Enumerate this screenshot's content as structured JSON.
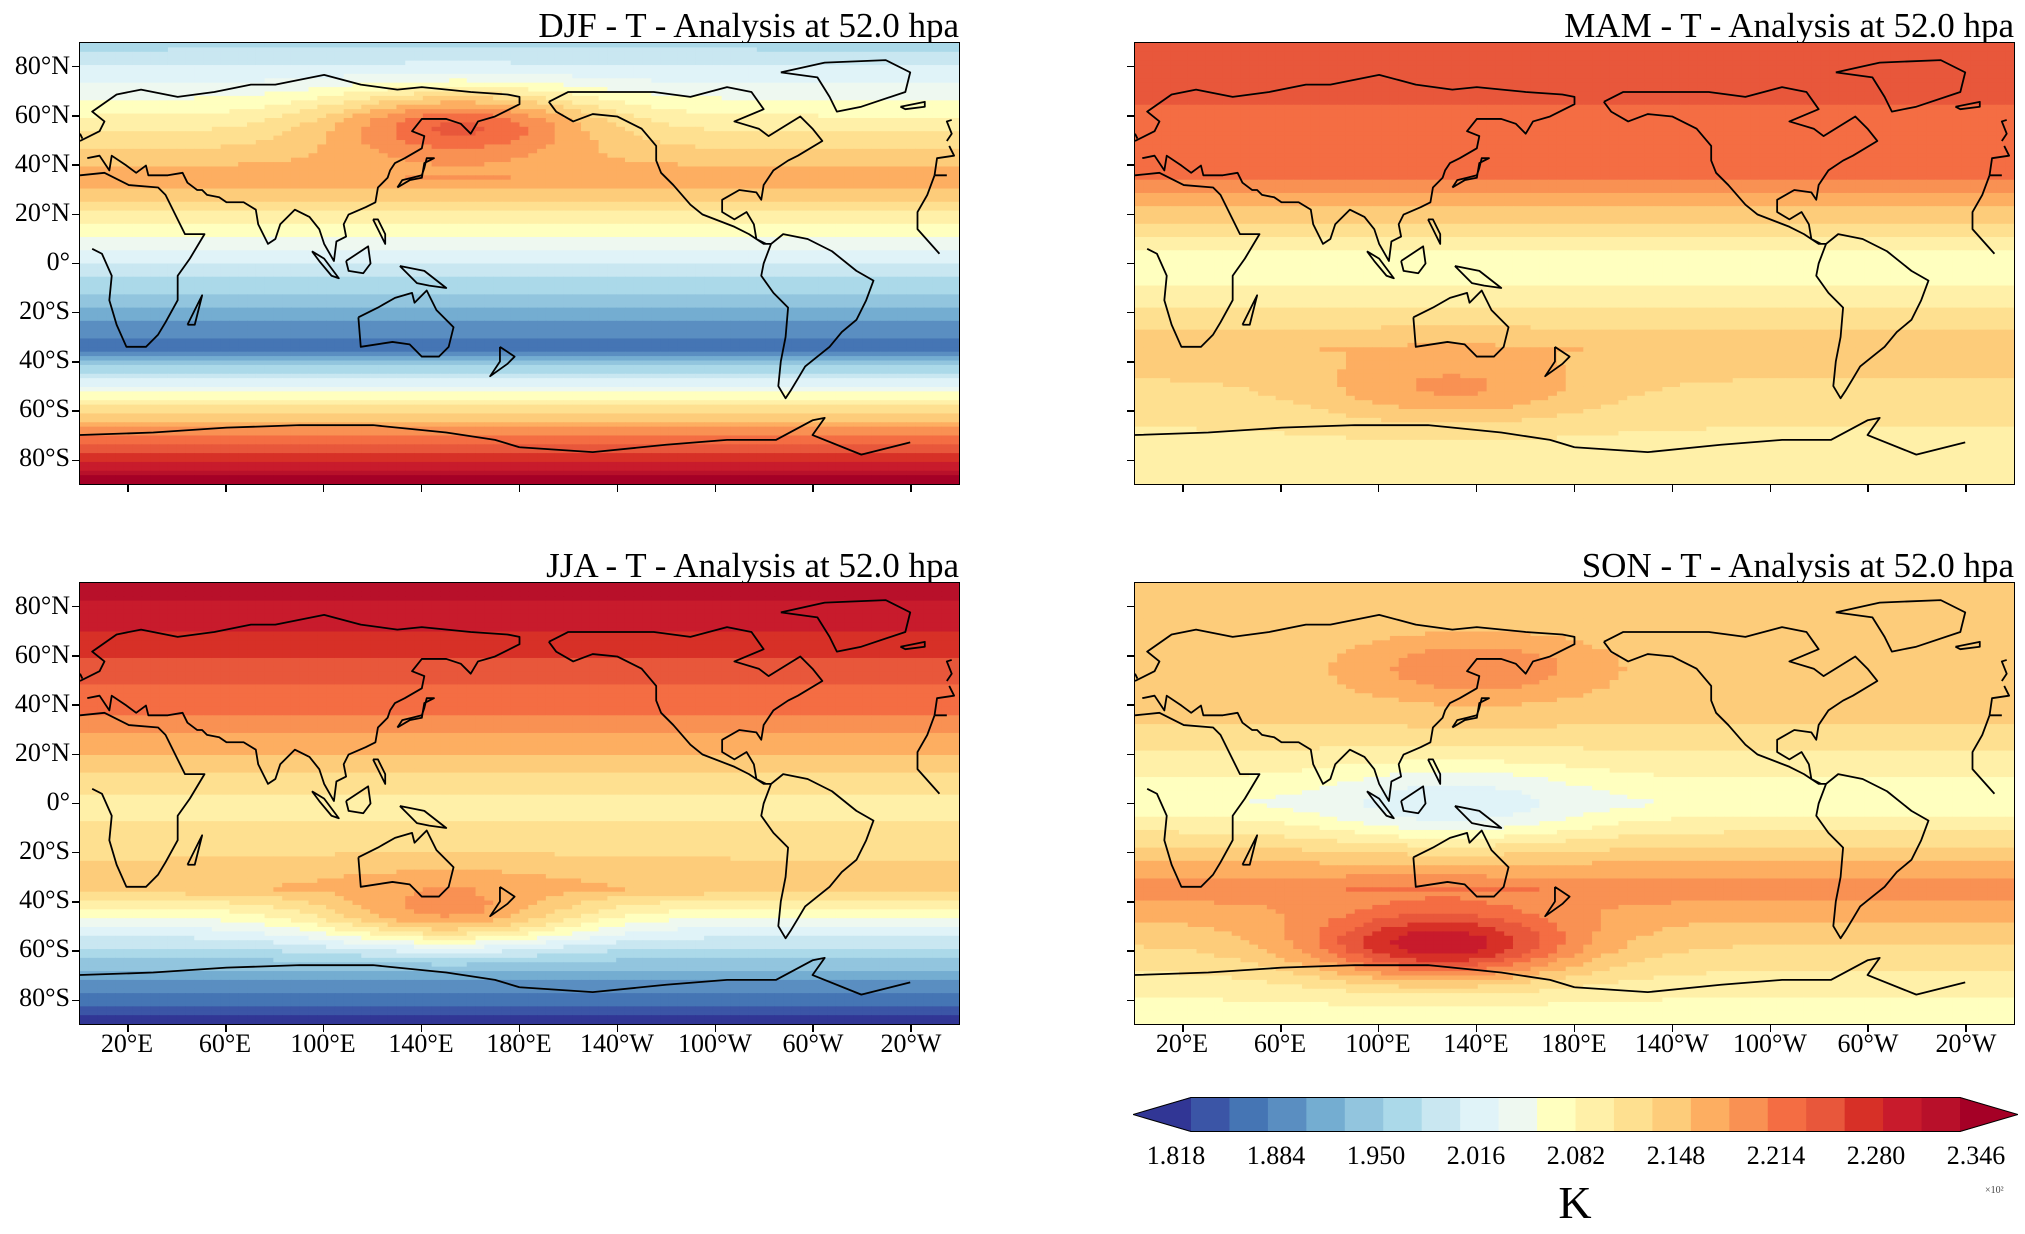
{
  "panels": [
    {
      "title": "DJF - T - Analysis at 52.0 hpa",
      "field": {
        "north": 0.3,
        "n_mid": 0.67,
        "eq": 0.36,
        "s_mid": 0.1,
        "south": 0.99,
        "blobs": [
          {
            "lon": 155,
            "lat": 55,
            "value": 0.78
          }
        ]
      }
    },
    {
      "title": "MAM - T - Analysis at 52.0 hpa",
      "field": {
        "north": 0.81,
        "n_mid": 0.73,
        "eq": 0.46,
        "s_mid": 0.63,
        "south": 0.5,
        "blobs": [
          {
            "lon": 130,
            "lat": -50,
            "value": 0.69
          }
        ]
      }
    },
    {
      "title": "JJA - T - Analysis at 52.0 hpa",
      "field": {
        "north": 0.94,
        "n_mid": 0.72,
        "eq": 0.52,
        "s_mid": 0.63,
        "south": 0.02,
        "blobs": [
          {
            "lon": 150,
            "lat": -42,
            "value": 0.7
          }
        ]
      }
    },
    {
      "title": "SON - T - Analysis at 52.0 hpa",
      "field": {
        "north": 0.6,
        "n_mid": 0.6,
        "eq": 0.46,
        "s_mid": 0.72,
        "south": 0.46,
        "blobs": [
          {
            "lon": 125,
            "lat": -57,
            "value": 0.9
          },
          {
            "lon": 140,
            "lat": 55,
            "value": 0.72
          },
          {
            "lon": 130,
            "lat": 0,
            "value": 0.38
          }
        ]
      }
    }
  ],
  "lat_ticks": [
    "80°N",
    "60°N",
    "40°N",
    "20°N",
    "0°",
    "20°S",
    "40°S",
    "60°S",
    "80°S"
  ],
  "lon_ticks": [
    "20°E",
    "60°E",
    "100°E",
    "140°E",
    "180°E",
    "140°W",
    "100°W",
    "60°W",
    "20°W"
  ],
  "colorbar": {
    "tick_labels": [
      "1.818",
      "1.884",
      "1.950",
      "2.016",
      "2.082",
      "2.148",
      "2.214",
      "2.280",
      "2.346"
    ],
    "unit": "K",
    "multiplier": "×10²",
    "colors": [
      "#313695",
      "#3b55a6",
      "#4575b4",
      "#5a8ec1",
      "#74add1",
      "#92c5de",
      "#abd9e9",
      "#c9e7f1",
      "#e0f3f8",
      "#eef8f0",
      "#ffffbf",
      "#fff0a8",
      "#fee090",
      "#fdcc7a",
      "#fdae61",
      "#f99153",
      "#f46d43",
      "#e8573b",
      "#d73027",
      "#c81b2c",
      "#b8102a",
      "#a50026"
    ]
  }
}
